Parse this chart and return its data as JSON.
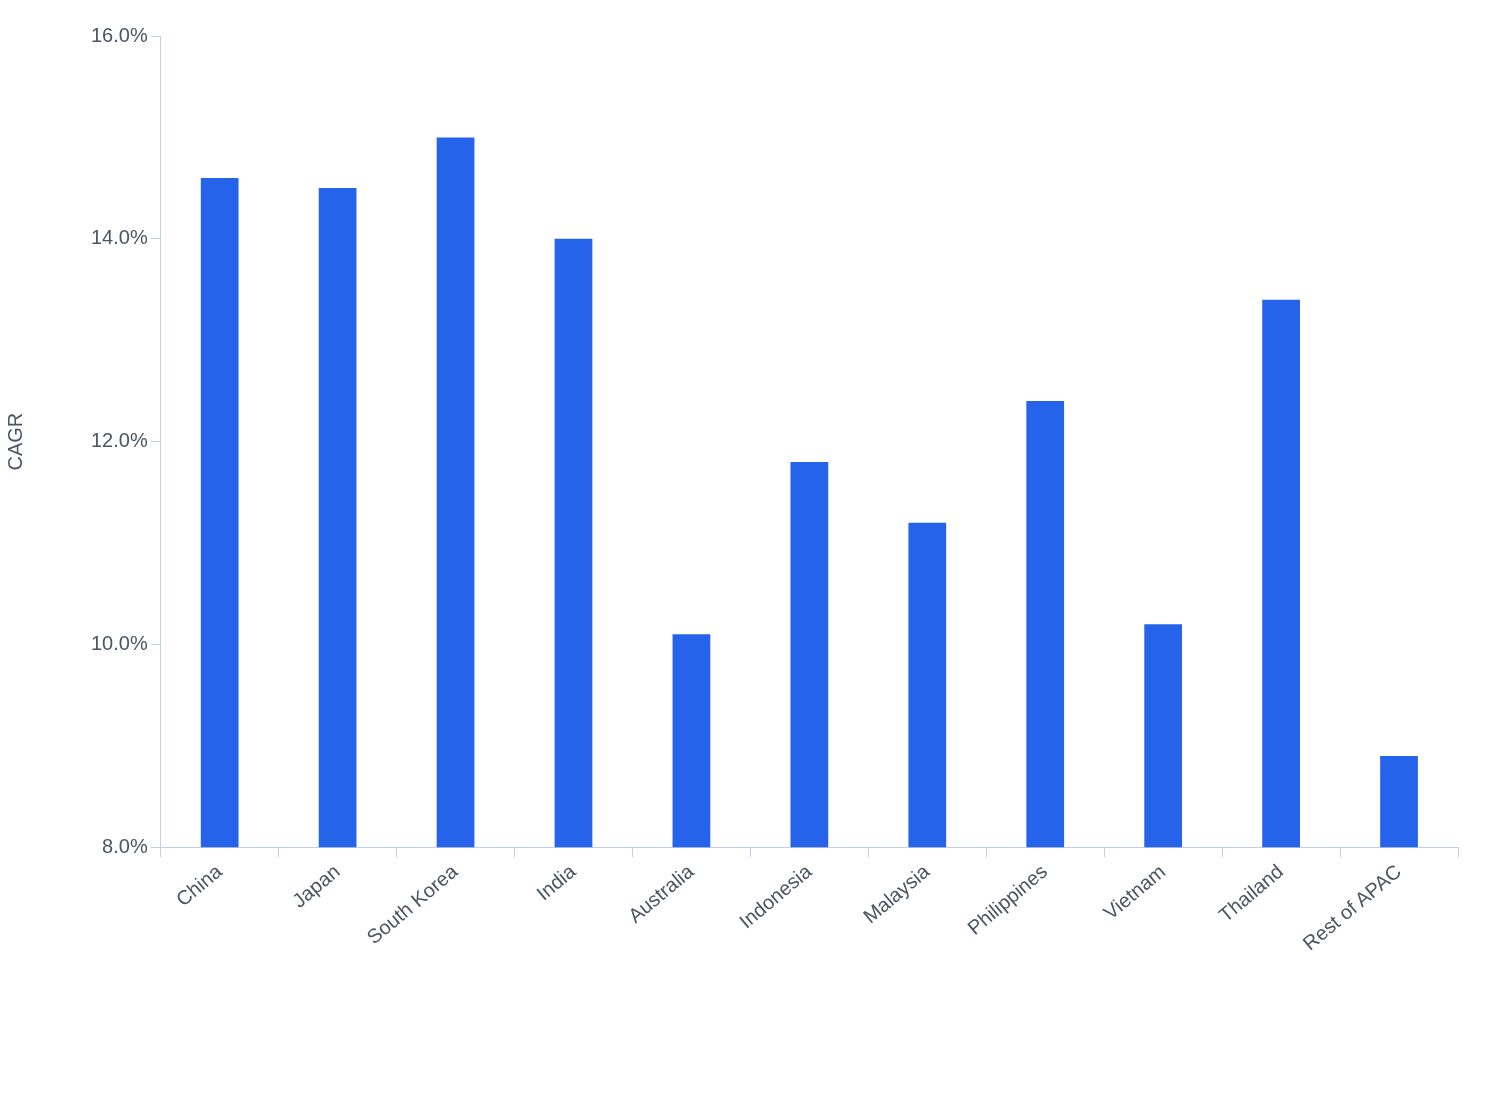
{
  "chart_data": {
    "type": "bar",
    "ylabel": "CAGR",
    "categories": [
      "China",
      "Japan",
      "South Korea",
      "India",
      "Australia",
      "Indonesia",
      "Malaysia",
      "Philippines",
      "Vietnam",
      "Thailand",
      "Rest of APAC"
    ],
    "values": [
      14.6,
      14.5,
      15.0,
      14.0,
      10.1,
      11.8,
      11.2,
      12.4,
      10.2,
      13.4,
      8.9
    ],
    "color": "#2563eb",
    "ylim": [
      8,
      16
    ],
    "yticks": [
      {
        "value": 8,
        "label": "8.0%"
      },
      {
        "value": 10,
        "label": "10.0%"
      },
      {
        "value": 12,
        "label": "12.0%"
      },
      {
        "value": 14,
        "label": "14.0%"
      },
      {
        "value": 16,
        "label": "16.0%"
      }
    ]
  }
}
